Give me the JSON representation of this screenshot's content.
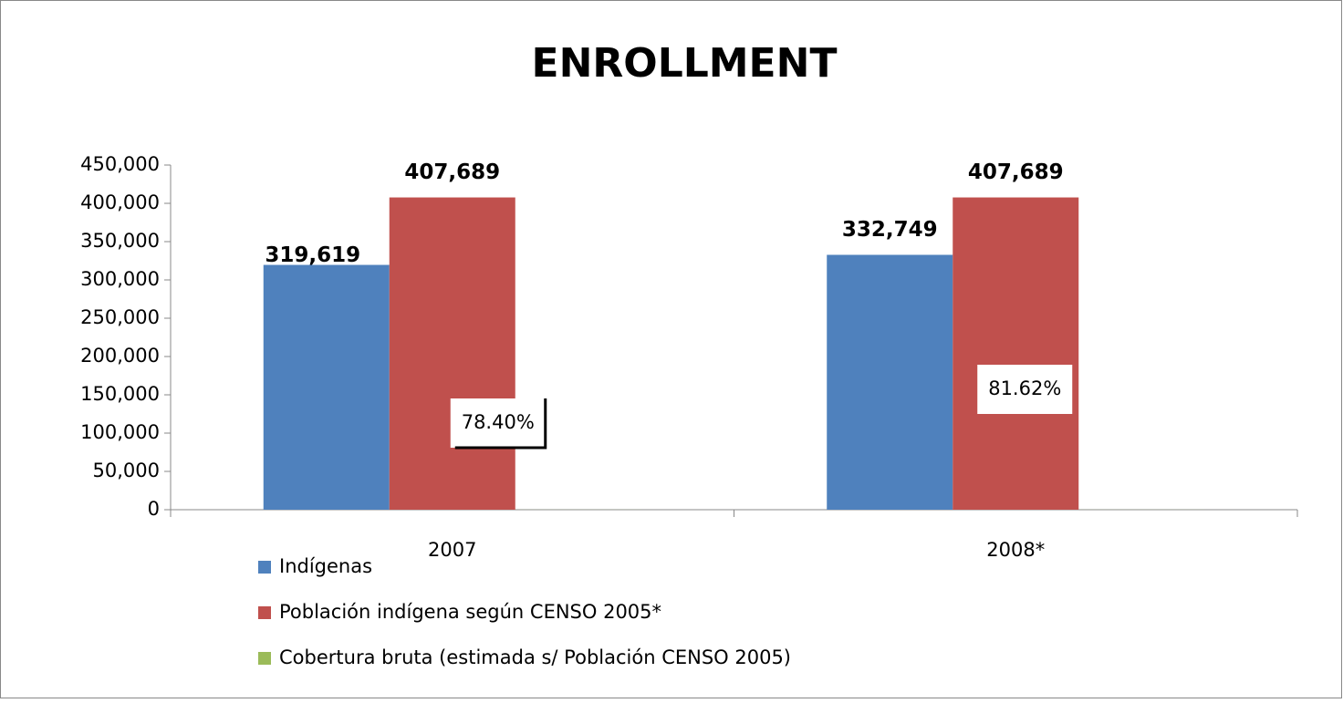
{
  "chart_data": {
    "type": "bar",
    "title": "ENROLLMENT",
    "categories": [
      "2007",
      "2008*"
    ],
    "series": [
      {
        "name": "Indígenas",
        "color": "#4f81bd",
        "values": [
          319619,
          332749
        ],
        "value_labels": [
          "319,619",
          "332,749"
        ]
      },
      {
        "name": "Población indígena según CENSO 2005*",
        "color": "#c0504d",
        "values": [
          407689,
          407689
        ],
        "value_labels": [
          "407,689",
          "407,689"
        ]
      },
      {
        "name": "Cobertura bruta (estimada  s/ Población CENSO 2005)",
        "color": "#9bbb59",
        "values": [
          78.4,
          81.62
        ],
        "value_labels": [
          "78.40%",
          "81.62%"
        ]
      }
    ],
    "ylim": [
      0,
      450000
    ],
    "yticks": [
      0,
      {
        "value": 50000,
        "label": "50,000"
      },
      {
        "value": 100000,
        "label": "100,000"
      },
      {
        "value": 150000,
        "label": "150,000"
      },
      {
        "value": 200000,
        "label": "200,000"
      },
      {
        "value": 250000,
        "label": "250,000"
      },
      {
        "value": 300000,
        "label": "300,000"
      },
      {
        "value": 350000,
        "label": "350,000"
      },
      {
        "value": 400000,
        "label": "400,000"
      },
      {
        "value": 450000,
        "label": "450,000"
      }
    ],
    "legend": "bottom-left"
  }
}
